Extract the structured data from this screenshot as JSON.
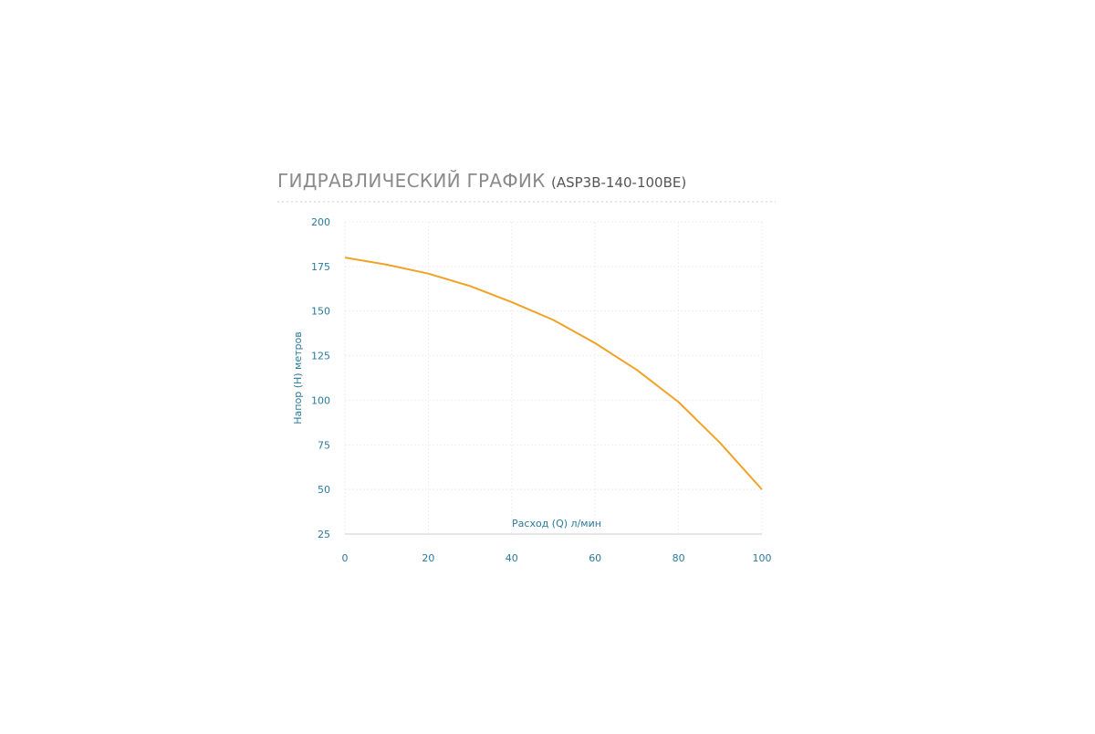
{
  "chart_data": {
    "type": "line",
    "title": "ГИДРАВЛИЧЕСКИЙ ГРАФИК",
    "subtitle": "(ASP3B-140-100BE)",
    "x_label": "Расход (Q) л/мин",
    "y_label": "Напор (H) метров",
    "x": [
      0,
      10,
      20,
      30,
      40,
      50,
      60,
      70,
      80,
      90,
      100
    ],
    "series": [
      {
        "color": "#f0a226",
        "values": [
          180,
          176,
          171,
          164,
          155,
          145,
          132,
          117,
          99,
          76,
          50
        ]
      }
    ],
    "xlim": [
      0,
      100
    ],
    "xticks": [
      0,
      20,
      40,
      60,
      80,
      100
    ],
    "ylim": [
      25,
      200
    ],
    "yticks": [
      25,
      50,
      75,
      100,
      125,
      150,
      175,
      200
    ],
    "grid": true
  }
}
